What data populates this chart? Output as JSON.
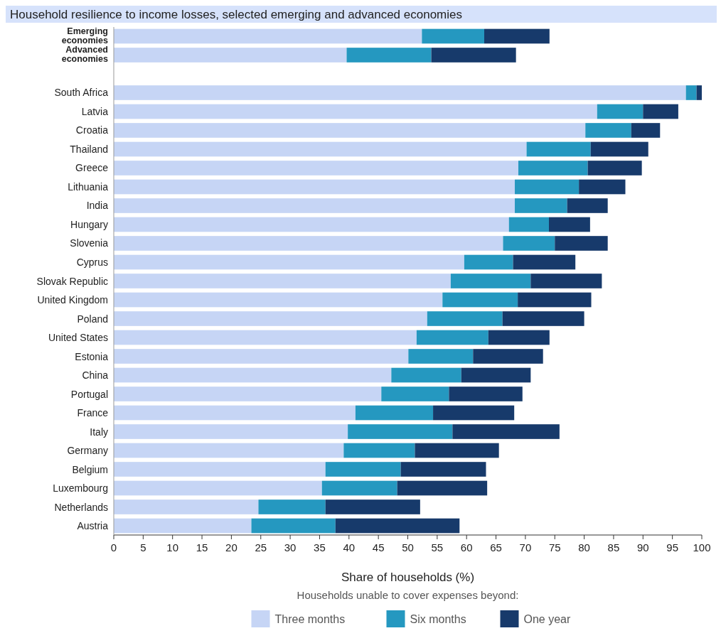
{
  "chart_data": {
    "type": "bar",
    "orientation": "horizontal",
    "stacked": true,
    "title": "Household resilience to income losses, selected emerging and advanced economies",
    "xlabel": "Share of households (%)",
    "legend_title": "Households unable to cover expenses beyond:",
    "legend": "bottom",
    "grid": false,
    "categories": [
      "Emerging economies",
      "Advanced economies",
      null,
      "South Africa",
      "Latvia",
      "Croatia",
      "Thailand",
      "Greece",
      "Lithuania",
      "India",
      "Hungary",
      "Slovenia",
      "Cyprus",
      "Slovak Republic",
      "United Kingdom",
      "Poland",
      "United States",
      "Estonia",
      "China",
      "Portugal",
      "France",
      "Italy",
      "Germany",
      "Belgium",
      "Luxembourg",
      "Netherlands",
      "Austria"
    ],
    "xlim": [
      0,
      100
    ],
    "xticks": [
      0,
      5,
      10,
      15,
      20,
      25,
      30,
      35,
      40,
      45,
      50,
      55,
      60,
      65,
      70,
      75,
      80,
      85,
      90,
      95,
      100
    ],
    "series": [
      {
        "name": "Three months",
        "color": "#c6d5f5",
        "values": [
          52.4,
          39.6,
          null,
          97.3,
          82.2,
          80.2,
          70.2,
          68.8,
          68.2,
          68.2,
          67.2,
          66.2,
          59.6,
          57.3,
          55.9,
          53.3,
          51.5,
          50.1,
          47.2,
          45.5,
          41.1,
          39.8,
          39.1,
          36.0,
          35.4,
          24.6,
          23.4
        ]
      },
      {
        "name": "Six months",
        "color": "#2598c0",
        "values": [
          10.6,
          14.4,
          null,
          1.8,
          7.8,
          7.8,
          10.9,
          11.8,
          10.9,
          8.9,
          6.8,
          8.8,
          8.3,
          13.6,
          12.8,
          12.8,
          12.2,
          11.0,
          11.9,
          11.5,
          13.2,
          17.8,
          12.1,
          12.8,
          12.8,
          11.4,
          14.3
        ]
      },
      {
        "name": "One year",
        "color": "#173a6b",
        "values": [
          11.1,
          14.4,
          null,
          0.9,
          6.0,
          4.9,
          9.8,
          9.2,
          7.9,
          6.9,
          7.0,
          9.0,
          10.6,
          12.1,
          12.5,
          13.9,
          10.4,
          11.9,
          11.8,
          12.5,
          13.8,
          18.2,
          14.3,
          14.5,
          15.3,
          16.1,
          21.1
        ]
      }
    ]
  }
}
